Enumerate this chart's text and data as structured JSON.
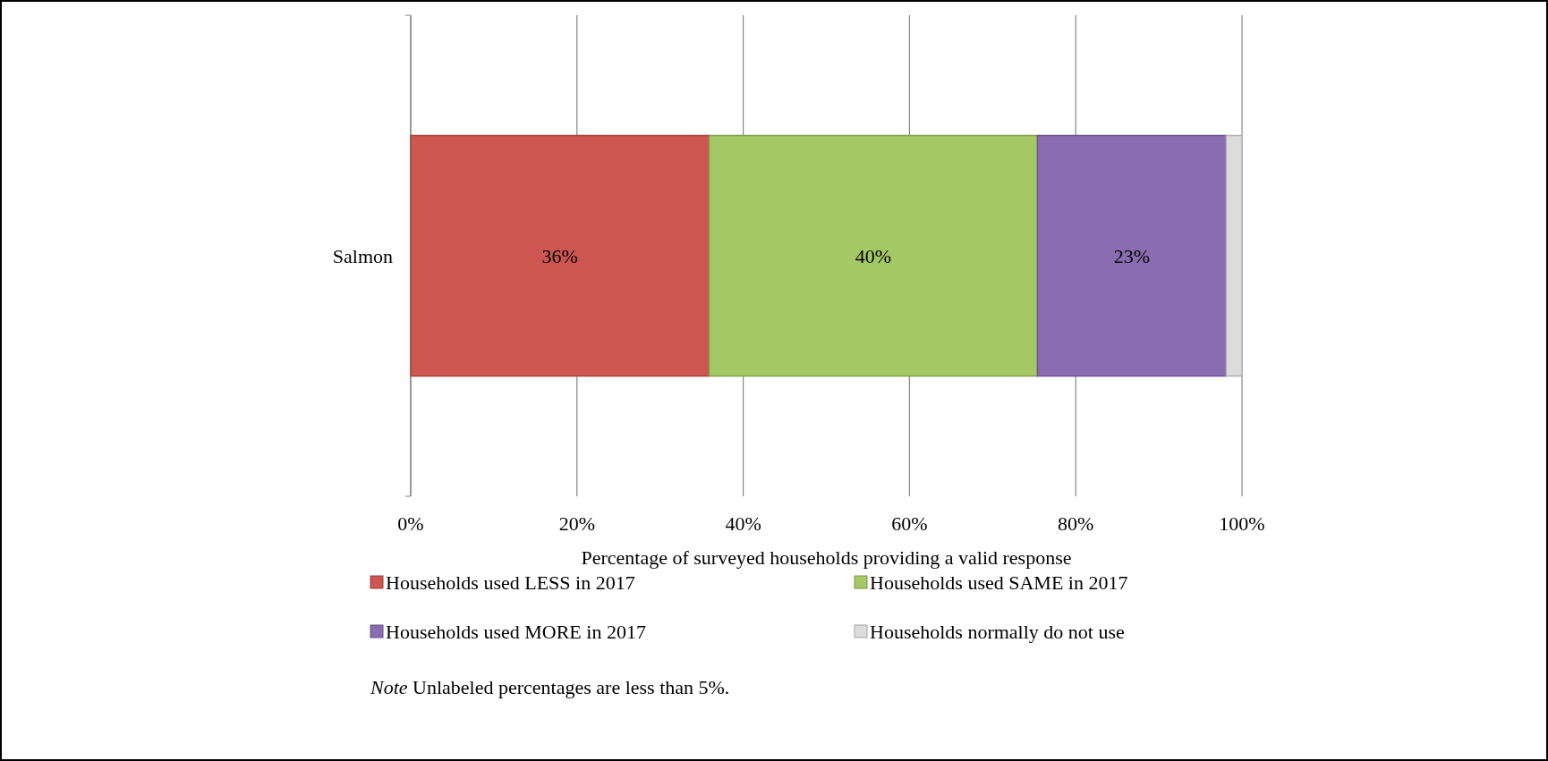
{
  "chart_data": {
    "type": "bar",
    "orientation": "horizontal",
    "stacked": true,
    "categories": [
      "Salmon"
    ],
    "series": [
      {
        "name": "Households used LESS in 2017",
        "color": "#cd5652",
        "values": [
          35.9
        ],
        "value_labels": [
          "36%"
        ]
      },
      {
        "name": "Households used SAME in 2017",
        "color": "#a4c866",
        "values": [
          39.5
        ],
        "value_labels": [
          "40%"
        ]
      },
      {
        "name": "Households used MORE in 2017",
        "color": "#8a6cb0",
        "values": [
          22.7
        ],
        "value_labels": [
          "23%"
        ]
      },
      {
        "name": "Households normally do not use",
        "color": "#dcdcdc",
        "values": [
          1.9
        ],
        "value_labels": [
          null
        ]
      }
    ],
    "xlim": [
      0,
      100
    ],
    "xticks": [
      {
        "value": 0,
        "label": "0%"
      },
      {
        "value": 20,
        "label": "20%"
      },
      {
        "value": 40,
        "label": "40%"
      },
      {
        "value": 60,
        "label": "60%"
      },
      {
        "value": 80,
        "label": "80%"
      },
      {
        "value": 100,
        "label": "100%"
      }
    ],
    "xlabel": "Percentage of  surveyed households providing a valid response",
    "grid": "x",
    "legend": "bottom",
    "annotations": [
      "Note Unlabeled percentages are less than 5%."
    ]
  }
}
